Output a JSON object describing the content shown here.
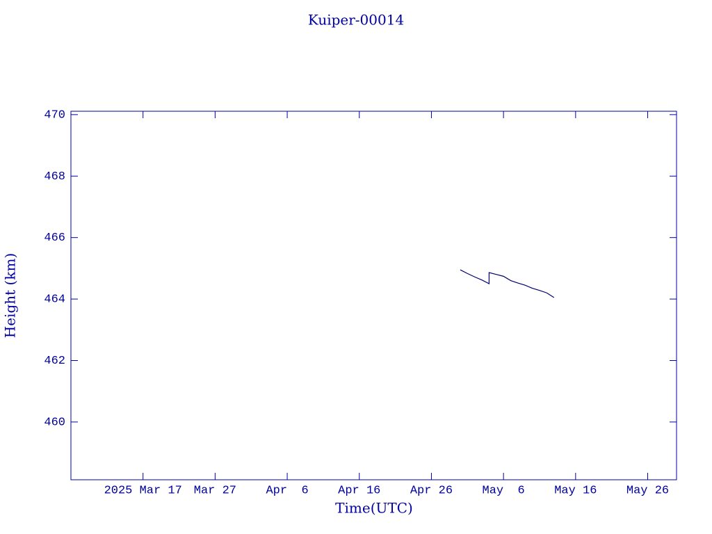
{
  "chart_data": {
    "type": "line",
    "title": "Kuiper-00014",
    "x_label": "Time(UTC)",
    "y_label": "Height (km)",
    "xlim": [
      "2025-03-07",
      "2025-05-30"
    ],
    "xticks": [
      {
        "value": "2025-03-17",
        "label": "2025 Mar 17"
      },
      {
        "value": "2025-03-27",
        "label": "Mar 27"
      },
      {
        "value": "2025-04-06",
        "label": "Apr  6"
      },
      {
        "value": "2025-04-16",
        "label": "Apr 16"
      },
      {
        "value": "2025-04-26",
        "label": "Apr 26"
      },
      {
        "value": "2025-05-06",
        "label": "May  6"
      },
      {
        "value": "2025-05-16",
        "label": "May 16"
      },
      {
        "value": "2025-05-26",
        "label": "May 26"
      }
    ],
    "ylim": [
      458.12,
      470.11
    ],
    "yticks": [
      460,
      462,
      464,
      466,
      468,
      470
    ],
    "x": [
      "2025-04-30",
      "2025-05-01",
      "2025-05-02",
      "2025-05-03",
      "2025-05-04",
      "2025-05-04",
      "2025-05-05",
      "2025-05-06",
      "2025-05-07",
      "2025-05-08",
      "2025-05-09",
      "2025-05-10",
      "2025-05-11",
      "2025-05-12",
      "2025-05-13"
    ],
    "series": [
      {
        "name": "Kuiper-00014",
        "color": "#000070",
        "values": [
          464.95,
          464.83,
          464.72,
          464.62,
          464.5,
          464.86,
          464.8,
          464.74,
          464.6,
          464.52,
          464.45,
          464.35,
          464.28,
          464.2,
          464.05
        ]
      }
    ],
    "axis_color": "#0000a0"
  }
}
